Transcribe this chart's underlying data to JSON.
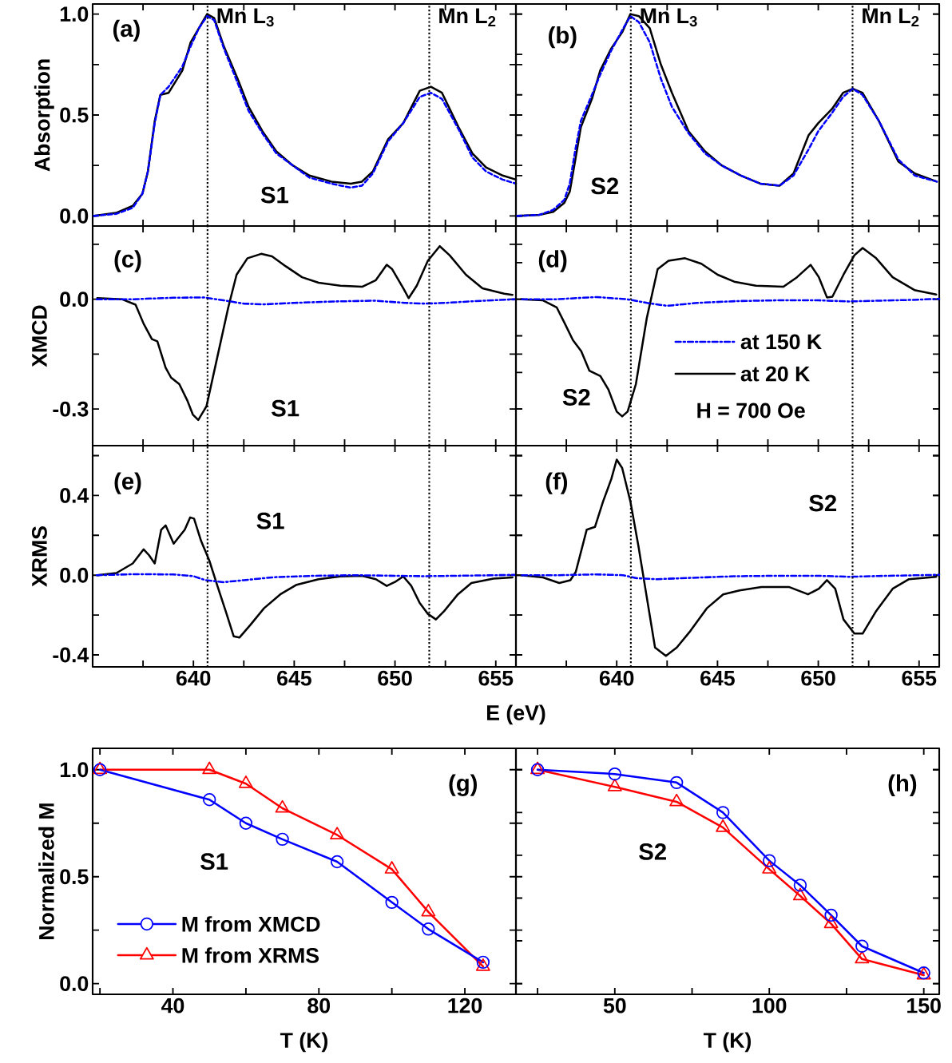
{
  "chart_data": [
    {
      "type": "line",
      "ylabel": "Absorption",
      "xlim": [
        635,
        656
      ],
      "ylim": [
        -0.05,
        1.05
      ],
      "tick_labels": "y",
      "xticks": [
        {
          "value": 637.5,
          "label": null
        },
        640,
        {
          "value": 642.5,
          "label": null
        },
        645,
        {
          "value": 647.5,
          "label": null
        },
        650,
        {
          "value": 652.5,
          "label": null
        },
        655
      ],
      "yticks": [
        {
          "value": 0,
          "label": "0.0"
        },
        {
          "value": 0.25,
          "label": null
        },
        {
          "value": 0.5,
          "label": "0.5"
        },
        {
          "value": 0.75,
          "label": null
        },
        {
          "value": 1,
          "label": "1.0"
        }
      ],
      "annotations": [
        "(a)",
        "S1"
      ],
      "ref_lines": [
        {
          "axis": "x",
          "value": 640.7,
          "label": "Mn L$_{3}$",
          "line_style": "dotted"
        },
        {
          "axis": "x",
          "value": 651.7,
          "label": "Mn L$_{2}$",
          "line_style": "dotted"
        }
      ],
      "series": [
        {
          "color": "#0000ff",
          "line_style": "dashed",
          "x": [
            635.07,
            636.16,
            636.99,
            637.47,
            637.74,
            638.08,
            638.36,
            638.77,
            639.45,
            639.86,
            640.27,
            640.68,
            641.03,
            641.51,
            642.19,
            642.74,
            643.42,
            644.11,
            644.93,
            645.75,
            646.85,
            647.81,
            648.36,
            648.9,
            649.66,
            650.41,
            651.23,
            651.78,
            652.33,
            653.15,
            653.84,
            654.52,
            655.34,
            656.0
          ],
          "values": [
            0.0,
            0.01,
            0.04,
            0.11,
            0.22,
            0.46,
            0.6,
            0.64,
            0.74,
            0.84,
            0.93,
            0.99,
            0.97,
            0.83,
            0.66,
            0.52,
            0.41,
            0.31,
            0.25,
            0.19,
            0.16,
            0.14,
            0.15,
            0.21,
            0.37,
            0.46,
            0.59,
            0.61,
            0.58,
            0.43,
            0.29,
            0.22,
            0.18,
            0.16
          ]
        },
        {
          "color": "#000000",
          "line_style": "solid",
          "x": [
            635.07,
            636.16,
            636.99,
            637.47,
            637.74,
            638.08,
            638.36,
            638.77,
            639.45,
            639.86,
            640.27,
            640.68,
            641.03,
            641.51,
            642.19,
            642.74,
            643.42,
            644.11,
            644.93,
            645.75,
            646.85,
            647.81,
            648.36,
            648.9,
            649.66,
            650.41,
            651.23,
            651.78,
            652.33,
            653.15,
            653.84,
            654.52,
            655.34,
            656.0
          ],
          "values": [
            0.0,
            0.015,
            0.05,
            0.11,
            0.22,
            0.47,
            0.6,
            0.61,
            0.72,
            0.86,
            0.93,
            1.0,
            0.98,
            0.84,
            0.68,
            0.54,
            0.42,
            0.32,
            0.25,
            0.2,
            0.17,
            0.16,
            0.17,
            0.22,
            0.38,
            0.46,
            0.62,
            0.64,
            0.61,
            0.44,
            0.31,
            0.24,
            0.2,
            0.18
          ]
        }
      ]
    },
    {
      "type": "line",
      "xlim": [
        635,
        656
      ],
      "ylim": [
        -0.05,
        1.05
      ],
      "tick_labels": false,
      "xticks": [
        {
          "value": 637.5,
          "label": null
        },
        640,
        {
          "value": 642.5,
          "label": null
        },
        645,
        {
          "value": 647.5,
          "label": null
        },
        650,
        {
          "value": 652.5,
          "label": null
        },
        655
      ],
      "yticks": [
        {
          "value": 0,
          "label": null
        },
        {
          "value": 0.25,
          "label": null
        },
        {
          "value": 0.5,
          "label": null
        },
        {
          "value": 0.75,
          "label": null
        },
        {
          "value": 1,
          "label": null
        }
      ],
      "annotations": [
        "(b)",
        "S2"
      ],
      "ref_lines": [
        {
          "axis": "x",
          "value": 640.7,
          "label": "Mn L$_{3}$",
          "line_style": "dotted"
        },
        {
          "axis": "x",
          "value": 651.7,
          "label": "Mn L$_{2}$",
          "line_style": "dotted"
        }
      ],
      "series": [
        {
          "color": "#0000ff",
          "line_style": "dashed",
          "x": [
            635.07,
            636.16,
            636.85,
            637.4,
            637.67,
            637.95,
            638.22,
            638.77,
            639.18,
            639.73,
            640.27,
            640.68,
            641.1,
            641.64,
            642.19,
            642.74,
            643.56,
            644.38,
            645.21,
            646.16,
            647.12,
            648.08,
            648.77,
            649.52,
            650.0,
            650.68,
            651.23,
            651.71,
            652.19,
            653.01,
            653.97,
            654.79,
            655.88
          ],
          "values": [
            0.0,
            0.005,
            0.03,
            0.08,
            0.16,
            0.33,
            0.47,
            0.6,
            0.7,
            0.82,
            0.92,
            0.99,
            0.96,
            0.86,
            0.68,
            0.54,
            0.41,
            0.31,
            0.25,
            0.2,
            0.16,
            0.15,
            0.2,
            0.33,
            0.42,
            0.51,
            0.59,
            0.63,
            0.6,
            0.47,
            0.28,
            0.2,
            0.17
          ]
        },
        {
          "color": "#000000",
          "line_style": "solid",
          "x": [
            635.07,
            636.16,
            636.85,
            637.4,
            637.67,
            637.95,
            638.22,
            638.77,
            639.18,
            639.73,
            640.27,
            640.68,
            641.1,
            641.64,
            642.19,
            642.74,
            643.56,
            644.38,
            645.21,
            646.16,
            647.12,
            648.08,
            648.77,
            649.52,
            650.0,
            650.68,
            651.23,
            651.71,
            652.19,
            653.01,
            653.97,
            654.79,
            655.88
          ],
          "values": [
            0.0,
            0.005,
            0.02,
            0.065,
            0.12,
            0.28,
            0.44,
            0.58,
            0.72,
            0.83,
            0.91,
            1.0,
            0.99,
            0.93,
            0.75,
            0.61,
            0.42,
            0.32,
            0.25,
            0.2,
            0.16,
            0.15,
            0.21,
            0.4,
            0.46,
            0.53,
            0.61,
            0.63,
            0.61,
            0.47,
            0.27,
            0.21,
            0.17
          ]
        }
      ]
    },
    {
      "type": "line",
      "ylabel": "XMCD",
      "xlim": [
        635,
        656
      ],
      "ylim": [
        -0.4,
        0.2
      ],
      "tick_labels": "y",
      "xticks": [
        {
          "value": 637.5,
          "label": null
        },
        640,
        {
          "value": 642.5,
          "label": null
        },
        645,
        {
          "value": 647.5,
          "label": null
        },
        650,
        {
          "value": 652.5,
          "label": null
        },
        655
      ],
      "yticks": [
        {
          "value": -0.3,
          "label": "-0.3"
        },
        {
          "value": -0.15,
          "label": null
        },
        {
          "value": 0,
          "label": "0.0"
        },
        {
          "value": 0.15,
          "label": null
        }
      ],
      "annotations": [
        "(c)",
        "S1"
      ],
      "ref_lines": [
        {
          "axis": "x",
          "value": 640.7,
          "line_style": "dotted"
        },
        {
          "axis": "x",
          "value": 651.7,
          "line_style": "dotted"
        }
      ],
      "series": [
        {
          "color": "#0000ff",
          "line_style": "dashdot",
          "x": [
            635.2,
            637,
            639,
            640.5,
            641.5,
            642.5,
            643.5,
            645,
            647,
            649,
            650.5,
            651.5,
            652.5,
            654,
            656
          ],
          "values": [
            0.0,
            0.0,
            0.004,
            0.005,
            -0.003,
            -0.012,
            -0.014,
            -0.01,
            -0.006,
            -0.004,
            -0.01,
            -0.012,
            -0.01,
            -0.005,
            0.0
          ]
        },
        {
          "color": "#000000",
          "line_style": "solid",
          "x": [
            635.23,
            636.45,
            637.13,
            637.53,
            637.94,
            638.21,
            638.62,
            638.89,
            639.3,
            639.7,
            639.97,
            640.24,
            640.65,
            641.19,
            641.73,
            642.14,
            642.68,
            643.36,
            643.9,
            644.58,
            645.39,
            646.21,
            647.29,
            648.37,
            649.05,
            649.59,
            649.86,
            650.41,
            650.68,
            651.08,
            651.63,
            652.22,
            652.71,
            653.52,
            654.34,
            655.42,
            655.83
          ],
          "values": [
            0.003,
            0.0,
            -0.015,
            -0.067,
            -0.109,
            -0.115,
            -0.187,
            -0.214,
            -0.232,
            -0.277,
            -0.315,
            -0.33,
            -0.292,
            -0.157,
            -0.022,
            0.067,
            0.112,
            0.124,
            0.117,
            0.09,
            0.06,
            0.045,
            0.037,
            0.034,
            0.052,
            0.094,
            0.082,
            0.03,
            0.003,
            0.037,
            0.105,
            0.145,
            0.12,
            0.067,
            0.03,
            0.015,
            0.012
          ]
        }
      ]
    },
    {
      "type": "line",
      "xlim": [
        635,
        656
      ],
      "ylim": [
        -0.4,
        0.2
      ],
      "tick_labels": false,
      "legend": "bottom right",
      "xticks": [
        {
          "value": 637.5,
          "label": null
        },
        640,
        {
          "value": 642.5,
          "label": null
        },
        645,
        {
          "value": 647.5,
          "label": null
        },
        650,
        {
          "value": 652.5,
          "label": null
        },
        655
      ],
      "yticks": [
        {
          "value": -0.3,
          "label": null
        },
        {
          "value": -0.15,
          "label": null
        },
        {
          "value": 0,
          "label": null
        },
        {
          "value": 0.15,
          "label": null
        }
      ],
      "annotations": [
        "(d)",
        "S2",
        "H = 700 Oe"
      ],
      "ref_lines": [
        {
          "axis": "x",
          "value": 640.7,
          "line_style": "dotted"
        },
        {
          "axis": "x",
          "value": 651.7,
          "line_style": "dotted"
        }
      ],
      "series": [
        {
          "name": "at 150 K",
          "color": "#0000ff",
          "line_style": "dashdot",
          "x": [
            635.3,
            637,
            639,
            640.5,
            641.5,
            642.5,
            644,
            646,
            648,
            650,
            651.5,
            653,
            654.5,
            656
          ],
          "values": [
            0.0,
            0.0,
            0.006,
            0.0,
            -0.01,
            -0.018,
            -0.01,
            -0.005,
            -0.003,
            -0.003,
            -0.006,
            -0.004,
            -0.002,
            0.001
          ]
        },
        {
          "name": "at 20 K",
          "color": "#000000",
          "line_style": "solid",
          "x": [
            635.26,
            636.34,
            637.02,
            637.43,
            637.83,
            638.24,
            638.64,
            639.19,
            639.59,
            640.0,
            640.27,
            640.54,
            640.95,
            641.49,
            642.03,
            642.57,
            643.39,
            644.2,
            645.01,
            645.83,
            646.91,
            648.27,
            648.94,
            649.62,
            650.03,
            650.43,
            650.7,
            651.25,
            651.79,
            652.2,
            652.87,
            653.69,
            654.77,
            655.85
          ],
          "values": [
            0.0,
            -0.003,
            -0.022,
            -0.067,
            -0.112,
            -0.142,
            -0.195,
            -0.21,
            -0.247,
            -0.307,
            -0.32,
            -0.307,
            -0.232,
            -0.052,
            0.082,
            0.105,
            0.112,
            0.097,
            0.067,
            0.048,
            0.037,
            0.034,
            0.06,
            0.094,
            0.06,
            0.005,
            0.007,
            0.067,
            0.12,
            0.14,
            0.112,
            0.06,
            0.025,
            0.013
          ]
        }
      ]
    },
    {
      "type": "line",
      "ylabel": "XRMS",
      "xlabel": "E (eV)",
      "xlim": [
        635,
        656
      ],
      "ylim": [
        -0.46,
        0.65
      ],
      "xticks": [
        {
          "value": 637.5,
          "label": null
        },
        640,
        {
          "value": 642.5,
          "label": null
        },
        645,
        {
          "value": 647.5,
          "label": null
        },
        650,
        {
          "value": 652.5,
          "label": null
        },
        655
      ],
      "yticks": [
        {
          "value": -0.4,
          "label": "-0.4"
        },
        {
          "value": -0.2,
          "label": null
        },
        {
          "value": 0,
          "label": "0.0"
        },
        {
          "value": 0.2,
          "label": null
        },
        {
          "value": 0.4,
          "label": "0.4"
        },
        {
          "value": 0.6,
          "label": null
        }
      ],
      "annotations": [
        "(e)",
        "S1"
      ],
      "ref_lines": [
        {
          "axis": "x",
          "value": 640.7,
          "line_style": "dotted"
        },
        {
          "axis": "x",
          "value": 651.7,
          "line_style": "dotted"
        }
      ],
      "series": [
        {
          "color": "#0000ff",
          "line_style": "dashdot",
          "x": [
            635.2,
            637,
            639,
            640,
            640.6,
            641.5,
            642.5,
            644,
            646,
            648,
            650,
            651.5,
            653,
            655,
            656
          ],
          "values": [
            0.0,
            0.005,
            0.004,
            -0.005,
            -0.025,
            -0.035,
            -0.025,
            -0.01,
            -0.003,
            0.0,
            -0.003,
            -0.005,
            -0.003,
            0.0,
            0.002
          ]
        },
        {
          "color": "#000000",
          "line_style": "solid",
          "x": [
            635.23,
            636.18,
            636.99,
            637.53,
            637.8,
            638.08,
            638.4,
            638.62,
            639.02,
            639.57,
            639.84,
            640.03,
            640.38,
            640.79,
            641.19,
            641.6,
            642.0,
            642.28,
            642.82,
            643.5,
            644.31,
            645.12,
            646.21,
            647.29,
            648.37,
            649.05,
            649.59,
            650.0,
            650.41,
            650.81,
            651.22,
            651.63,
            652.03,
            652.44,
            653.12,
            653.79,
            654.88,
            655.83
          ],
          "values": [
            0.0,
            0.011,
            0.059,
            0.13,
            0.1,
            0.059,
            0.228,
            0.25,
            0.158,
            0.228,
            0.29,
            0.284,
            0.172,
            0.073,
            -0.054,
            -0.18,
            -0.307,
            -0.313,
            -0.25,
            -0.166,
            -0.096,
            -0.048,
            -0.02,
            -0.006,
            -0.003,
            -0.02,
            -0.054,
            -0.034,
            -0.006,
            -0.054,
            -0.138,
            -0.194,
            -0.222,
            -0.18,
            -0.096,
            -0.039,
            -0.017,
            -0.011
          ]
        }
      ]
    },
    {
      "type": "line",
      "xlim": [
        635,
        656
      ],
      "ylim": [
        -0.46,
        0.65
      ],
      "tick_labels": "x",
      "xticks": [
        {
          "value": 637.5,
          "label": null
        },
        640,
        {
          "value": 642.5,
          "label": null
        },
        645,
        {
          "value": 647.5,
          "label": null
        },
        650,
        {
          "value": 652.5,
          "label": null
        },
        655
      ],
      "yticks": [
        {
          "value": -0.4,
          "label": null
        },
        {
          "value": -0.2,
          "label": null
        },
        {
          "value": 0,
          "label": null
        },
        {
          "value": 0.2,
          "label": null
        },
        {
          "value": 0.4,
          "label": null
        },
        {
          "value": 0.6,
          "label": null
        }
      ],
      "annotations": [
        "(f)",
        "S2"
      ],
      "ref_lines": [
        {
          "axis": "x",
          "value": 640.7,
          "line_style": "dotted"
        },
        {
          "axis": "x",
          "value": 651.7,
          "line_style": "dotted"
        }
      ],
      "series": [
        {
          "color": "#0000ff",
          "line_style": "dashdot",
          "x": [
            635.3,
            637,
            639,
            640.3,
            641,
            642,
            644,
            646,
            648,
            650,
            651.5,
            653,
            655,
            656
          ],
          "values": [
            0.0,
            0.0,
            0.004,
            0.0,
            -0.015,
            -0.02,
            -0.012,
            -0.005,
            -0.003,
            -0.003,
            -0.008,
            -0.004,
            0.0,
            0.002
          ]
        },
        {
          "color": "#000000",
          "line_style": "solid",
          "x": [
            635.26,
            636.34,
            637.15,
            637.7,
            637.97,
            638.51,
            638.92,
            639.32,
            639.73,
            640.0,
            640.27,
            640.68,
            641.08,
            641.49,
            641.9,
            642.44,
            642.98,
            643.66,
            644.47,
            645.28,
            646.1,
            647.18,
            648.54,
            649.49,
            650.03,
            650.43,
            650.84,
            651.25,
            651.79,
            652.2,
            652.87,
            653.69,
            654.5,
            655.85
          ],
          "values": [
            0.0,
            -0.011,
            -0.039,
            -0.025,
            0.017,
            0.228,
            0.242,
            0.369,
            0.482,
            0.58,
            0.538,
            0.369,
            0.144,
            -0.11,
            -0.363,
            -0.405,
            -0.363,
            -0.279,
            -0.166,
            -0.096,
            -0.076,
            -0.059,
            -0.059,
            -0.096,
            -0.068,
            -0.025,
            -0.068,
            -0.222,
            -0.293,
            -0.293,
            -0.18,
            -0.068,
            -0.02,
            -0.008
          ]
        }
      ]
    },
    {
      "type": "line",
      "ylabel": "Normalized M",
      "xlabel": "T (K)",
      "xlim": [
        18,
        134
      ],
      "ylim": [
        -0.05,
        1.1
      ],
      "legend": "bottom left",
      "xticks": [
        {
          "value": 20,
          "label": null
        },
        40,
        {
          "value": 60,
          "label": null
        },
        80,
        {
          "value": 100,
          "label": null
        },
        120
      ],
      "yticks": [
        {
          "value": 0,
          "label": "0.0"
        },
        {
          "value": 0.25,
          "label": null
        },
        {
          "value": 0.5,
          "label": "0.5"
        },
        {
          "value": 0.75,
          "label": null
        },
        {
          "value": 1,
          "label": "1.0"
        }
      ],
      "annotations": [
        "(g)",
        "S1"
      ],
      "series": [
        {
          "name": "M from XMCD",
          "color": "#0000ff",
          "line_style": "solid",
          "marker": "circle",
          "x": [
            20,
            50,
            60,
            70,
            85,
            100,
            110,
            125
          ],
          "values": [
            1.0,
            0.86,
            0.75,
            0.675,
            0.57,
            0.38,
            0.255,
            0.1
          ]
        },
        {
          "name": "M from XRMS",
          "color": "#ff0000",
          "line_style": "solid",
          "marker": "triangle",
          "x": [
            20,
            50,
            60,
            70,
            85,
            100,
            110,
            125
          ],
          "values": [
            1.0,
            1.0,
            0.935,
            0.82,
            0.695,
            0.535,
            0.335,
            0.08
          ]
        }
      ]
    },
    {
      "type": "line",
      "xlabel": "T (K)",
      "xlim": [
        18,
        155
      ],
      "ylim": [
        -0.05,
        1.1
      ],
      "tick_labels": "x",
      "xticks": [
        {
          "value": 25,
          "label": null
        },
        50,
        {
          "value": 75,
          "label": null
        },
        100,
        {
          "value": 125,
          "label": null
        },
        150
      ],
      "yticks": [
        {
          "value": 0,
          "label": null
        },
        {
          "value": 0.25,
          "label": null
        },
        {
          "value": 0.5,
          "label": null
        },
        {
          "value": 0.75,
          "label": null
        },
        {
          "value": 1,
          "label": null
        }
      ],
      "annotations": [
        "(h)",
        "S2"
      ],
      "series": [
        {
          "color": "#0000ff",
          "line_style": "solid",
          "marker": "circle",
          "x": [
            25,
            50,
            70,
            85,
            100,
            110,
            120,
            130,
            150
          ],
          "values": [
            1.0,
            0.98,
            0.94,
            0.8,
            0.575,
            0.46,
            0.32,
            0.175,
            0.05
          ]
        },
        {
          "color": "#ff0000",
          "line_style": "solid",
          "marker": "triangle",
          "x": [
            25,
            50,
            70,
            85,
            100,
            110,
            120,
            130,
            150
          ],
          "values": [
            1.0,
            0.92,
            0.85,
            0.73,
            0.535,
            0.41,
            0.28,
            0.115,
            0.04
          ]
        }
      ]
    }
  ]
}
